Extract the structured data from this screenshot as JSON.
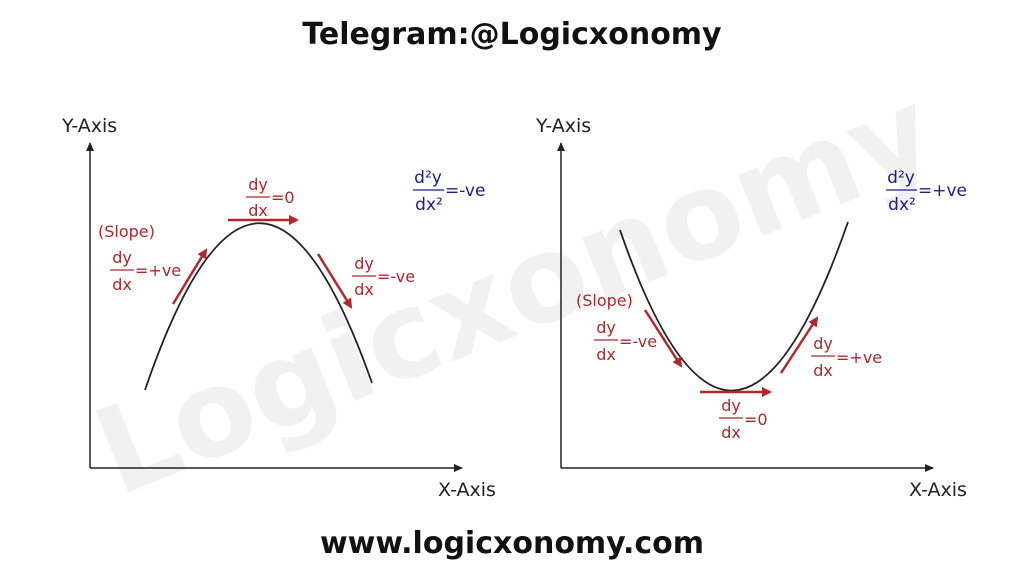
{
  "header": {
    "title": "Telegram:@Logicxonomy"
  },
  "footer": {
    "website": "www.logicxonomy.com"
  },
  "watermark": "Logicxonomy",
  "colors": {
    "curve": "#222222",
    "tangent": "#b3262b",
    "second_derivative": "#1e1a8c"
  },
  "left_graph": {
    "y_axis": "Y-Axis",
    "x_axis": "X-Axis",
    "curve": "concave-down",
    "second_derivative": {
      "numerator": "d²y",
      "denominator": "dx²",
      "sign": "=-ve"
    },
    "slope_label": "(Slope)",
    "slopes": [
      {
        "numerator": "dy",
        "denominator": "dx",
        "sign": "=+ve"
      },
      {
        "numerator": "dy",
        "denominator": "dx",
        "sign": "=0"
      },
      {
        "numerator": "dy",
        "denominator": "dx",
        "sign": "=-ve"
      }
    ]
  },
  "right_graph": {
    "y_axis": "Y-Axis",
    "x_axis": "X-Axis",
    "curve": "concave-up",
    "second_derivative": {
      "numerator": "d²y",
      "denominator": "dx²",
      "sign": "=+ve"
    },
    "slope_label": "(Slope)",
    "slopes": [
      {
        "numerator": "dy",
        "denominator": "dx",
        "sign": "=-ve"
      },
      {
        "numerator": "dy",
        "denominator": "dx",
        "sign": "=0"
      },
      {
        "numerator": "dy",
        "denominator": "dx",
        "sign": "=+ve"
      }
    ]
  }
}
